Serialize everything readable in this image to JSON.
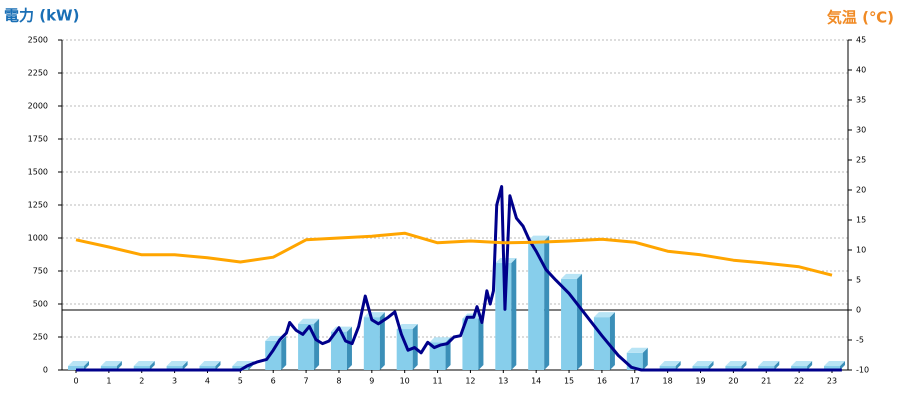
{
  "chart_data": {
    "type": "combo",
    "ylabel": "電力 (kW)",
    "y2label": "気温 (℃)",
    "categories": [
      0,
      1,
      2,
      3,
      4,
      5,
      6,
      7,
      8,
      9,
      10,
      11,
      12,
      13,
      14,
      15,
      16,
      17,
      18,
      19,
      20,
      21,
      22,
      23
    ],
    "ylim": [
      0,
      2500
    ],
    "yticks": [
      0,
      250,
      500,
      750,
      1000,
      1250,
      1500,
      1750,
      2000,
      2250,
      2500
    ],
    "y2lim": [
      -10,
      45
    ],
    "y2ticks": [
      -10,
      -5,
      0,
      5,
      10,
      15,
      20,
      25,
      30,
      35,
      40,
      45
    ],
    "y2_hline": 0,
    "grid": true,
    "series": [
      {
        "type": "bar",
        "color": "#87ceeb",
        "values": [
          0,
          0,
          0,
          0,
          0,
          0,
          190,
          320,
          260,
          370,
          280,
          180,
          360,
          780,
          950,
          660,
          370,
          100,
          0,
          0,
          0,
          0,
          0,
          0
        ]
      },
      {
        "type": "line",
        "color": "#00008b",
        "x": [
          0,
          5,
          5.2,
          5.5,
          5.8,
          6.0,
          6.2,
          6.4,
          6.5,
          6.7,
          6.9,
          7.1,
          7.3,
          7.5,
          7.7,
          8.0,
          8.2,
          8.4,
          8.6,
          8.8,
          9.0,
          9.2,
          9.5,
          9.7,
          9.9,
          10.1,
          10.3,
          10.5,
          10.7,
          10.9,
          11.1,
          11.3,
          11.5,
          11.7,
          11.9,
          12.1,
          12.2,
          12.35,
          12.5,
          12.6,
          12.7,
          12.8,
          12.95,
          13.05,
          13.2,
          13.4,
          13.6,
          13.8,
          14.0,
          14.3,
          14.6,
          15.0,
          15.5,
          16.0,
          16.5,
          16.9,
          17.2,
          23.3
        ],
        "values": [
          0,
          0,
          30,
          60,
          80,
          150,
          230,
          280,
          360,
          300,
          270,
          330,
          230,
          200,
          220,
          320,
          220,
          200,
          330,
          560,
          380,
          350,
          400,
          440,
          270,
          150,
          170,
          130,
          210,
          170,
          190,
          200,
          250,
          260,
          400,
          400,
          480,
          360,
          600,
          500,
          600,
          1250,
          1390,
          460,
          1320,
          1150,
          1090,
          980,
          900,
          760,
          680,
          580,
          420,
          260,
          110,
          20,
          0,
          0
        ]
      },
      {
        "type": "line",
        "axis": "y2",
        "color": "#ffa500",
        "values": [
          11.7,
          10.5,
          9.2,
          9.2,
          8.7,
          8.0,
          8.8,
          11.7,
          12,
          12.3,
          12.8,
          11.2,
          11.5,
          11.2,
          11.3,
          11.5,
          11.8,
          11.3,
          9.8,
          9.2,
          8.3,
          7.8,
          7.2,
          5.8
        ]
      }
    ]
  }
}
